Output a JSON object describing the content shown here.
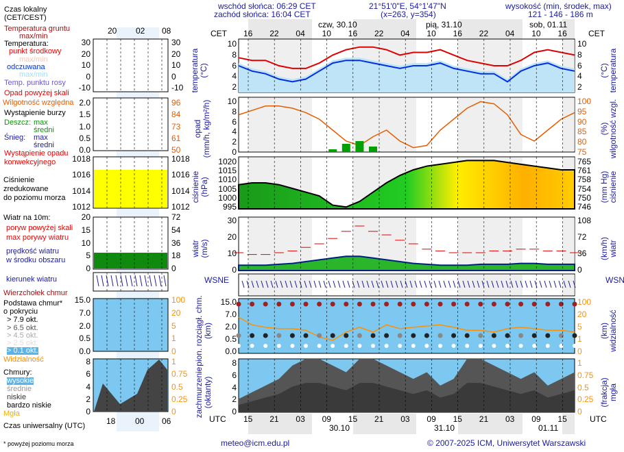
{
  "header": {
    "sunrise": "wschód słońca: 06:29 CET",
    "sunset": "zachód słońca: 16:04 CET",
    "coords": "21°51'0\"E, 54°1'47\"N",
    "grid": "(x=263,  y=354)",
    "elev_title": "wysokość (min, środek, max)",
    "elev_values": "121 - 146 - 186 m"
  },
  "time": {
    "cet": "CET",
    "utc": "UTC",
    "cet_ticks": [
      "16",
      "22",
      "04",
      "10",
      "16",
      "22",
      "04",
      "10",
      "16",
      "22",
      "04",
      "10",
      "16"
    ],
    "utc_ticks": [
      "15",
      "21",
      "03",
      "09",
      "15",
      "21",
      "03",
      "09",
      "15",
      "21",
      "03",
      "09",
      "15"
    ],
    "days_top": [
      "czw, 30.10",
      "pią, 31.10",
      "sob, 01.11"
    ],
    "days_bottom": [
      "30.10",
      "31.10",
      "01.11"
    ]
  },
  "legend": {
    "local_time": "Czas lokalny",
    "local_time2": "(CET/CEST)",
    "ground_temp": "Temperatura gruntu",
    "ground_temp2": "max/min",
    "temp": "Temperatura:",
    "temp_mid": "punkt środkowy",
    "temp_mm": "max/min",
    "feels": "odczuwana",
    "feels_mm": "max/min",
    "dew": "Temp. punktu rosy",
    "precip_over": "Opad powyżej skali",
    "humidity": "Wilgotność względna",
    "storm": "Wystąpienie burzy",
    "rain": "Deszcz:",
    "rain_max": "max",
    "rain_avg": "średni",
    "snow": "Śnieg:",
    "snow_max": "max",
    "snow_avg": "średni",
    "conv": "Wystąpienie opadu",
    "conv2": "konwekcyjnego",
    "press": "Ciśnienie",
    "press2": "zredukowane",
    "press3": "do poziomu morza",
    "wind": "Wiatr na 10m:",
    "gust_over": "poryw powyżej skali",
    "gust_max": "max porywy wiatru",
    "wind_speed": "prędkość wiatru",
    "wind_speed2": "w środku obszaru",
    "wind_dir": "kierunek wiatru",
    "cloud_top": "Wierzchołek chmur",
    "cloud_base": "Podstawa chmur*",
    "cloud_base2": "o pokryciu",
    "o79": "> 7.9 okt.",
    "o65": "> 6.5 okt.",
    "o45": "> 4.5 okt.",
    "o25": "> 2.5 okt.",
    "o01": "> 0.1 okt.",
    "visibility": "Widzialność",
    "clouds": "Chmury:",
    "high": "wysokie",
    "mid": "średnie",
    "low": "niskie",
    "vlow": "bardzo niskie",
    "fog": "Mgła",
    "utc_time": "Czas uniwersalny (UTC)",
    "footnote": "* powyżej poziomu morza",
    "mini_cet": [
      "20",
      "02",
      "08"
    ],
    "mini_utc": [
      "18",
      "00",
      "06"
    ]
  },
  "axes": {
    "temp": {
      "label": "temperatura",
      "unit": "(°C)",
      "left": [
        "10",
        "8",
        "6",
        "4",
        "2"
      ],
      "right": [
        "10",
        "8",
        "6",
        "4",
        "2"
      ],
      "mini_left": [
        "30",
        "20",
        "10",
        "0",
        "-10"
      ],
      "mini_right": [
        "30",
        "20",
        "10",
        "0",
        "-10"
      ]
    },
    "precip": {
      "label": "opad",
      "unit": "(mm/h, kg/m²/h)",
      "left": [
        "10",
        "8",
        "6",
        "4",
        "2",
        "0"
      ],
      "right_label": "wilgotność wzgl.",
      "right_unit": "(%)",
      "right": [
        "100",
        "95",
        "90",
        "85",
        "80",
        "75"
      ],
      "mini_left": [
        "2.0",
        "1.5",
        "1.0",
        "0.5",
        "0.0"
      ],
      "mini_right": [
        "96",
        "84",
        "73",
        "61",
        "50"
      ]
    },
    "press": {
      "label": "ciśnienie",
      "unit": "(hPa)",
      "left": [
        "1020",
        "1015",
        "1010",
        "1005",
        "1000",
        "995"
      ],
      "right_unit": "(mm Hg)",
      "right": [
        "765",
        "761",
        "758",
        "754",
        "750",
        "746"
      ],
      "mini_left": [
        "1018",
        "1016",
        "1014",
        "1012"
      ],
      "mini_right": [
        "1018",
        "1016",
        "1014",
        "1012"
      ]
    },
    "wind": {
      "label": "wiatr",
      "unit": "(m/s)",
      "left": [
        "30",
        "20",
        "10",
        "0"
      ],
      "right_unit": "(km/h)",
      "right": [
        "108",
        "72",
        "36",
        "0"
      ],
      "mini_left": [
        "20",
        "15",
        "10",
        "5",
        "0"
      ],
      "mini_right": [
        "72",
        "54",
        "36",
        "18",
        "0"
      ]
    },
    "dir": {
      "compass": "WSNE"
    },
    "cloud": {
      "label": "pion. rozciągł. chm.",
      "unit": "(km)",
      "left": [
        "15.0",
        "7.0",
        "2.0",
        "0.5",
        "0.0"
      ],
      "right_label": "widzialność",
      "right_unit": "(km)",
      "right": [
        "100",
        "20",
        "5",
        "1",
        "0"
      ]
    },
    "cover": {
      "label": "zachmurzenie",
      "unit": "(oktanty)",
      "left": [
        "8",
        "6",
        "4",
        "2",
        "0"
      ],
      "right_label": "mgła",
      "right_unit": "(frakcja)",
      "right": [
        "1",
        "0.75",
        "0.5",
        "0.25",
        "0"
      ]
    }
  },
  "colors": {
    "temp": "#e00000",
    "feels": "#0030e0",
    "humidity": "#e65c00",
    "rain": "#00a000",
    "pressure_low": "#00a000",
    "pressure_high": "#ffd000",
    "wind": "#002080",
    "visibility": "#ff9000",
    "sky": "#7cc8f0",
    "night": "#e8e8e8"
  },
  "chart_data": {
    "type": "line",
    "title": "meteogram",
    "x_hours_step": 3,
    "temperature": {
      "ylim": [
        1,
        11
      ],
      "mid": [
        7.5,
        7,
        7,
        6,
        5.5,
        5.5,
        6.5,
        8,
        9,
        9.5,
        9.5,
        9,
        8,
        8.5,
        8.5,
        9,
        8,
        7,
        6.5,
        6,
        6,
        7,
        8.5,
        9,
        8.5,
        8
      ],
      "feels": [
        6,
        5,
        4.5,
        3.5,
        3,
        3.5,
        5,
        6.5,
        7,
        7,
        6.5,
        6,
        5.5,
        6,
        6,
        6.5,
        5.5,
        5,
        4.5,
        4.5,
        3,
        5,
        6,
        6.5,
        5.5,
        5
      ]
    },
    "humidity": {
      "ylim": [
        75,
        100
      ],
      "values": [
        92,
        94,
        96,
        96,
        95,
        93,
        90,
        85,
        80,
        78,
        82,
        85,
        80,
        77,
        78,
        85,
        90,
        95,
        98,
        97,
        92,
        83,
        80,
        85,
        90,
        93
      ]
    },
    "precip": {
      "ylim": [
        0,
        10
      ],
      "values": [
        0,
        0,
        0,
        0,
        0,
        0,
        0,
        0.5,
        1.5,
        2,
        1,
        0,
        0,
        0,
        0,
        0,
        0,
        0,
        0,
        0,
        0,
        0,
        0,
        0,
        0,
        0
      ]
    },
    "pressure": {
      "ylim": [
        995,
        1023
      ],
      "values": [
        1008,
        1009,
        1009,
        1008,
        1006,
        1004,
        1002,
        997,
        996,
        999,
        1004,
        1009,
        1013,
        1016,
        1018,
        1019,
        1020,
        1021,
        1021,
        1021,
        1020,
        1019,
        1018,
        1017,
        1016,
        1016
      ]
    },
    "wind": {
      "ylim": [
        0,
        30
      ],
      "speed": [
        3,
        3,
        3,
        3.5,
        4,
        5,
        6,
        7,
        8,
        8,
        7,
        6,
        5,
        4,
        3.5,
        3,
        3,
        3,
        3.5,
        3.5,
        3.5,
        4,
        4,
        3.5,
        3.5,
        3.5
      ],
      "gust": [
        10,
        9,
        9,
        10,
        11,
        13,
        15,
        18,
        22,
        25,
        22,
        20,
        17,
        15,
        12,
        11,
        10,
        10,
        10,
        11,
        11,
        12,
        12,
        11,
        11,
        10
      ]
    },
    "visibility": {
      "values": [
        20,
        10,
        8,
        7,
        7,
        6,
        3,
        2,
        5,
        8,
        5,
        10,
        7,
        8,
        9,
        10,
        8,
        6,
        6,
        5,
        7,
        8,
        7,
        6,
        6,
        5
      ]
    },
    "cloud_cover": {
      "values": [
        2,
        3,
        4,
        5,
        7,
        8,
        8,
        7,
        6,
        8,
        8,
        7,
        6,
        5,
        6,
        4,
        5,
        8,
        8,
        7,
        6,
        5,
        6,
        4,
        5,
        6
      ]
    }
  },
  "footer": {
    "email": "meteo@icm.edu.pl",
    "copyright": "© 2007-2025 ICM, Uniwersytet Warszawski"
  }
}
